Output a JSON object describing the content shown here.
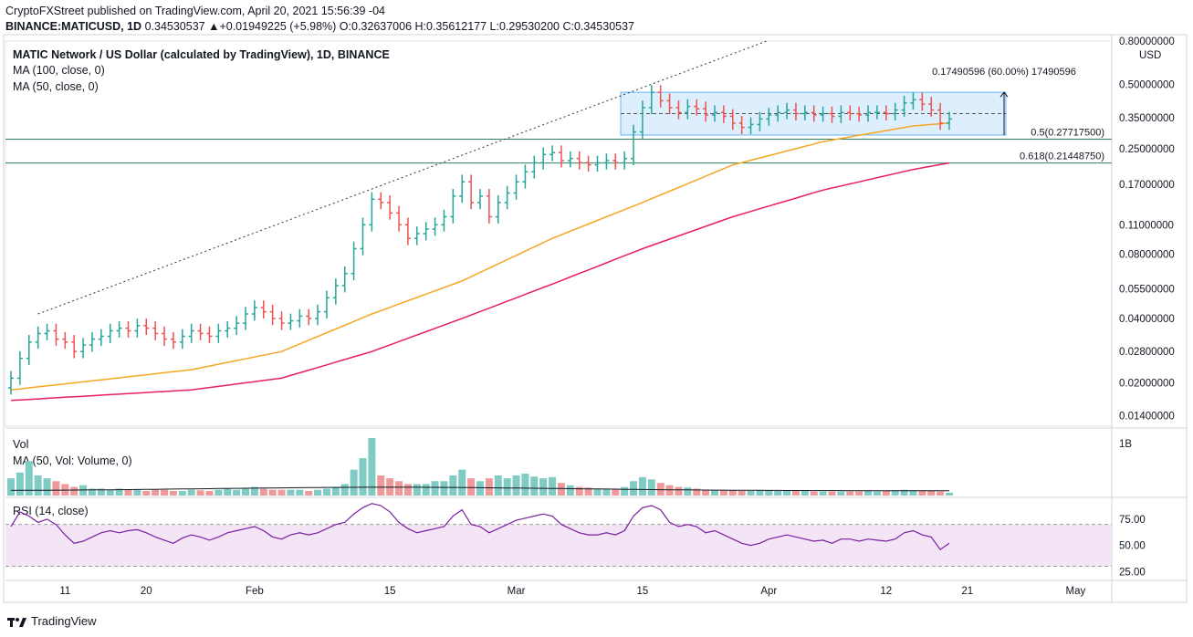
{
  "header": {
    "publisher": "CryptoFXStreet published on TradingView.com, April 20, 2021 15:56:39 -04",
    "symbol": "BINANCE:MATICUSD, 1D",
    "ohlc": "0.34530537 ▲+0.01949225 (+5.98%) O:0.32637006 H:0.35612177 L:0.29530200 C:0.34530537"
  },
  "legends": {
    "title": "MATIC Network / US Dollar (calculated by TradingView), 1D, BINANCE",
    "ma100": "MA (100, close, 0)",
    "ma50": "MA (50, close, 0)",
    "vol": "Vol",
    "vol_ma": "MA (50, Vol: Volume, 0)",
    "rsi": "RSI (14, close)"
  },
  "annotations": {
    "range_measure": "0.17490596 (60.00%) 17490596",
    "fib_05": "0.5(0.27717500)",
    "fib_0618": "0.618(0.21448750)"
  },
  "currency": "USD",
  "footer": {
    "brand": "TradingView"
  },
  "colors": {
    "up": "#26a69a",
    "down": "#ef5350",
    "ma50": "#f5a623",
    "ma100": "#e91e63",
    "fib": "#2e7d5b",
    "rsi": "#7b1fa2",
    "rsi_band": "#f3e5f5",
    "range_box": "#bbdefb"
  },
  "chart_data": [
    {
      "type": "candlestick",
      "title": "MATIC Network / US Dollar",
      "scale": "log",
      "ylim": [
        0.0125,
        0.8
      ],
      "y_ticks": [
        "0.80000000",
        "0.50000000",
        "0.35000000",
        "0.25000000",
        "0.17000000",
        "0.11000000",
        "0.08000000",
        "0.05500000",
        "0.04000000",
        "0.02800000",
        "0.02000000",
        "0.01400000"
      ],
      "x_ticks": [
        "11",
        "20",
        "Feb",
        "15",
        "Mar",
        "15",
        "Apr",
        "12",
        "21",
        "May"
      ],
      "date_range": [
        "2021-01-05",
        "2021-04-20"
      ],
      "close": [
        0.021,
        0.026,
        0.031,
        0.034,
        0.035,
        0.032,
        0.031,
        0.028,
        0.03,
        0.032,
        0.033,
        0.035,
        0.036,
        0.035,
        0.037,
        0.036,
        0.034,
        0.032,
        0.031,
        0.033,
        0.035,
        0.034,
        0.033,
        0.035,
        0.036,
        0.038,
        0.042,
        0.045,
        0.043,
        0.04,
        0.038,
        0.039,
        0.041,
        0.04,
        0.043,
        0.05,
        0.057,
        0.065,
        0.085,
        0.11,
        0.145,
        0.14,
        0.125,
        0.11,
        0.095,
        0.1,
        0.105,
        0.11,
        0.12,
        0.15,
        0.175,
        0.14,
        0.15,
        0.12,
        0.14,
        0.155,
        0.175,
        0.195,
        0.215,
        0.235,
        0.24,
        0.22,
        0.225,
        0.215,
        0.21,
        0.215,
        0.22,
        0.215,
        0.225,
        0.3,
        0.39,
        0.46,
        0.42,
        0.39,
        0.37,
        0.395,
        0.385,
        0.36,
        0.37,
        0.355,
        0.33,
        0.315,
        0.325,
        0.345,
        0.36,
        0.37,
        0.38,
        0.365,
        0.37,
        0.36,
        0.365,
        0.355,
        0.37,
        0.365,
        0.36,
        0.37,
        0.37,
        0.365,
        0.38,
        0.41,
        0.425,
        0.405,
        0.38,
        0.33,
        0.345
      ],
      "ma50": {
        "start_index": 0,
        "values_at": {
          "0": 0.0185,
          "20": 0.023,
          "30": 0.028,
          "40": 0.042,
          "50": 0.06,
          "60": 0.095,
          "70": 0.14,
          "80": 0.21,
          "90": 0.27,
          "100": 0.32,
          "104": 0.33
        }
      },
      "ma100": {
        "start_index": 0,
        "values_at": {
          "0": 0.0165,
          "20": 0.0185,
          "30": 0.021,
          "40": 0.028,
          "50": 0.04,
          "60": 0.058,
          "70": 0.085,
          "80": 0.12,
          "90": 0.16,
          "100": 0.2,
          "104": 0.2145
        }
      },
      "fib_levels": [
        {
          "level": "0.5",
          "value": 0.277175
        },
        {
          "level": "0.618",
          "value": 0.2144875
        }
      ],
      "consolidation_range": {
        "low": 0.29,
        "high": 0.46,
        "change": 0.17490596,
        "percent": 60.0
      }
    },
    {
      "type": "bar",
      "title": "Vol",
      "y_ticks": [
        "1B"
      ],
      "volume_relative": [
        0.3,
        0.4,
        0.6,
        0.35,
        0.3,
        0.25,
        0.2,
        0.15,
        0.18,
        0.12,
        0.12,
        0.1,
        0.12,
        0.1,
        0.1,
        0.08,
        0.1,
        0.1,
        0.08,
        0.08,
        0.1,
        0.09,
        0.08,
        0.1,
        0.12,
        0.1,
        0.12,
        0.15,
        0.12,
        0.1,
        0.1,
        0.1,
        0.1,
        0.08,
        0.1,
        0.12,
        0.15,
        0.2,
        0.45,
        0.65,
        1.0,
        0.35,
        0.3,
        0.25,
        0.2,
        0.2,
        0.2,
        0.25,
        0.25,
        0.35,
        0.45,
        0.3,
        0.25,
        0.3,
        0.35,
        0.3,
        0.35,
        0.38,
        0.33,
        0.3,
        0.32,
        0.22,
        0.18,
        0.15,
        0.14,
        0.12,
        0.12,
        0.12,
        0.15,
        0.25,
        0.32,
        0.28,
        0.22,
        0.18,
        0.15,
        0.14,
        0.12,
        0.1,
        0.1,
        0.09,
        0.09,
        0.08,
        0.08,
        0.09,
        0.09,
        0.08,
        0.08,
        0.08,
        0.08,
        0.07,
        0.07,
        0.07,
        0.07,
        0.07,
        0.07,
        0.08,
        0.07,
        0.08,
        0.09,
        0.1,
        0.09,
        0.08,
        0.08,
        0.07,
        0.05
      ]
    },
    {
      "type": "line",
      "title": "RSI (14, close)",
      "ylim": [
        20,
        95
      ],
      "y_ticks": [
        "75.00",
        "50.00",
        "25.00"
      ],
      "band": [
        30,
        70
      ],
      "values": [
        68,
        82,
        78,
        72,
        75,
        70,
        60,
        52,
        54,
        58,
        62,
        64,
        62,
        64,
        65,
        62,
        58,
        55,
        52,
        57,
        60,
        58,
        55,
        58,
        62,
        64,
        66,
        68,
        64,
        58,
        56,
        60,
        62,
        60,
        62,
        66,
        70,
        72,
        80,
        86,
        90,
        88,
        82,
        72,
        66,
        62,
        64,
        66,
        68,
        78,
        84,
        70,
        68,
        62,
        66,
        70,
        74,
        76,
        78,
        80,
        78,
        70,
        66,
        62,
        60,
        60,
        62,
        60,
        64,
        78,
        86,
        88,
        84,
        72,
        68,
        70,
        68,
        62,
        64,
        60,
        56,
        52,
        50,
        52,
        56,
        58,
        60,
        58,
        56,
        54,
        55,
        52,
        56,
        56,
        54,
        56,
        55,
        54,
        56,
        62,
        64,
        60,
        58,
        46,
        52
      ]
    }
  ]
}
